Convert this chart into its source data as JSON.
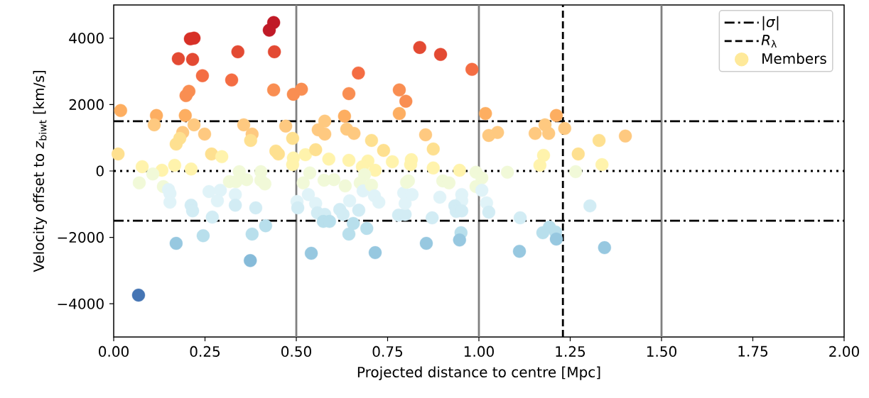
{
  "chart_data": {
    "type": "scatter",
    "xlabel": "Projected distance to centre [Mpc]",
    "ylabel": "Velocity offset to *z*$_{biwt}$ [km/s]",
    "xlim": [
      0,
      2
    ],
    "ylim": [
      -5000,
      5000
    ],
    "xticks": [
      {
        "value": 0,
        "label": "0.00"
      },
      {
        "value": 0.25,
        "label": "0.25"
      },
      {
        "value": 0.5,
        "label": "0.50"
      },
      {
        "value": 0.75,
        "label": "0.75"
      },
      {
        "value": 1,
        "label": "1.00"
      },
      {
        "value": 1.25,
        "label": "1.25"
      },
      {
        "value": 1.5,
        "label": "1.50"
      },
      {
        "value": 1.75,
        "label": "1.75"
      },
      {
        "value": 2,
        "label": "2.00"
      }
    ],
    "yticks": [
      {
        "value": -4000,
        "label": "−4000"
      },
      {
        "value": -2000,
        "label": "−2000"
      },
      0,
      2000,
      4000
    ],
    "legend": "top right",
    "marker": "circle",
    "ref_lines": [
      {
        "axis": "x",
        "value": 0.5,
        "color": "#808080",
        "line_style": "solid"
      },
      {
        "axis": "x",
        "value": 1.0,
        "color": "#808080",
        "line_style": "solid"
      },
      {
        "axis": "x",
        "value": 1.5,
        "color": "#808080",
        "line_style": "solid"
      },
      {
        "axis": "y",
        "value": 1500,
        "label": "|*σ*|",
        "color": "#000000",
        "line_style": "dashdot"
      },
      {
        "axis": "y",
        "value": -1500,
        "color": "#000000",
        "line_style": "dashdot"
      },
      {
        "axis": "y",
        "value": 0,
        "color": "#000000",
        "line_style": "dotted"
      },
      {
        "axis": "x",
        "value": 1.23,
        "label": "*R*$_{λ}$",
        "color": "#000000",
        "line_style": "dashed"
      }
    ],
    "series": [
      {
        "name": "Members",
        "color": "#fee99a",
        "x": [
          0.019,
          0.068,
          0.21,
          0.22,
          0.177,
          0.216,
          0.34,
          0.438,
          0.426,
          0.44,
          0.243,
          0.323,
          0.206,
          0.198,
          0.438,
          0.492,
          0.514,
          0.644,
          0.67,
          0.782,
          0.8,
          0.782,
          0.117,
          0.196,
          0.111,
          0.22,
          0.356,
          0.249,
          0.189,
          0.181,
          0.171,
          0.379,
          0.375,
          0.471,
          0.49,
          0.578,
          0.56,
          0.578,
          0.632,
          0.638,
          0.658,
          0.706,
          0.739,
          0.763,
          0.012,
          0.268,
          0.296,
          0.444,
          0.451,
          0.492,
          0.49,
          0.525,
          0.553,
          0.589,
          0.644,
          0.696,
          0.681,
          0.716,
          0.687,
          0.078,
          0.132,
          0.167,
          0.212,
          0.107,
          0.344,
          0.403,
          0.537,
          0.07,
          0.136,
          0.15,
          0.154,
          0.261,
          0.292,
          0.317,
          0.335,
          0.364,
          0.403,
          0.414,
          0.333,
          0.284,
          0.154,
          0.212,
          0.216,
          0.333,
          0.389,
          0.27,
          0.502,
          0.504,
          0.519,
          0.533,
          0.553,
          0.558,
          0.578,
          0.574,
          0.591,
          0.576,
          0.603,
          0.634,
          0.619,
          0.628,
          0.646,
          0.671,
          0.656,
          0.644,
          0.693,
          0.675,
          0.683,
          0.706,
          0.714,
          0.726,
          0.78,
          0.798,
          0.794,
          0.802,
          0.171,
          0.245,
          0.379,
          0.416,
          0.374,
          0.541,
          0.716,
          0.838,
          0.895,
          0.981,
          1.018,
          1.212,
          1.181,
          1.235,
          1.154,
          1.191,
          1.027,
          1.051,
          0.854,
          0.875,
          1.329,
          1.401,
          1.177,
          1.167,
          1.272,
          1.337,
          1.265,
          1.078,
          0.815,
          0.813,
          0.875,
          0.947,
          0.992,
          1.008,
          0.807,
          0.901,
          0.918,
          0.992,
          1.008,
          0.817,
          0.893,
          0.953,
          0.953,
          0.934,
          0.938,
          0.953,
          0.798,
          1.021,
          1.027,
          0.872,
          1.113,
          1.304,
          1.193,
          1.21,
          1.175,
          1.212,
          0.951,
          0.947,
          0.856,
          1.111,
          1.344
        ],
        "values": [
          1820,
          -3740,
          3980,
          4000,
          3380,
          3360,
          3590,
          4470,
          4240,
          3590,
          2870,
          2740,
          2400,
          2270,
          2440,
          2310,
          2460,
          2330,
          2950,
          2440,
          2100,
          1730,
          1670,
          1670,
          1390,
          1390,
          1390,
          1110,
          1160,
          980,
          810,
          1110,
          920,
          1350,
          980,
          1500,
          1240,
          1110,
          1650,
          1260,
          1130,
          920,
          620,
          280,
          510,
          510,
          430,
          600,
          510,
          390,
          190,
          490,
          640,
          360,
          320,
          300,
          130,
          20,
          -110,
          130,
          20,
          170,
          60,
          -90,
          -20,
          -20,
          -60,
          -360,
          -470,
          -560,
          -680,
          -620,
          -580,
          -320,
          -320,
          -260,
          -280,
          -390,
          -710,
          -900,
          -940,
          -1030,
          -1200,
          -1030,
          -1110,
          -1390,
          -920,
          -1110,
          -360,
          -710,
          -980,
          -1260,
          -1310,
          -1520,
          -1520,
          -280,
          -260,
          -450,
          -1160,
          -1310,
          -900,
          -1180,
          -1580,
          -1900,
          -1730,
          -360,
          -600,
          -430,
          -750,
          -940,
          -1330,
          -1310,
          -660,
          -340,
          -2180,
          -1950,
          -1900,
          -1650,
          -2700,
          -2480,
          -2460,
          3720,
          3510,
          3060,
          1730,
          1670,
          1390,
          1280,
          1130,
          1130,
          1070,
          1160,
          1090,
          660,
          920,
          1050,
          470,
          170,
          510,
          190,
          -20,
          -40,
          340,
          190,
          90,
          20,
          -40,
          -210,
          -300,
          -300,
          -360,
          -470,
          -580,
          -710,
          -790,
          -710,
          -900,
          -1050,
          -1220,
          -1200,
          -980,
          -960,
          -1240,
          -1410,
          -1410,
          -1050,
          -1690,
          -1840,
          -1860,
          -2050,
          -1860,
          -2080,
          -2180,
          -2420,
          -2310
        ],
        "colors": [
          "#fdae61",
          "#4575b4",
          "#d73027",
          "#d73027",
          "#e34a33",
          "#e34a33",
          "#e34a33",
          "#c01a27",
          "#c01a27",
          "#e34a33",
          "#f46d43",
          "#f46d43",
          "#f98e52",
          "#f98e52",
          "#f98e52",
          "#f98e52",
          "#f98e52",
          "#f98e52",
          "#f46d43",
          "#f98e52",
          "#f98e52",
          "#fdae61",
          "#fdae61",
          "#fdae61",
          "#fec980",
          "#fec980",
          "#fec980",
          "#fec980",
          "#fec980",
          "#fee090",
          "#fee090",
          "#fec980",
          "#fee090",
          "#fec980",
          "#fee090",
          "#fec980",
          "#fec980",
          "#fec980",
          "#fdae61",
          "#fec980",
          "#fec980",
          "#fee090",
          "#fee090",
          "#fff3ac",
          "#fee090",
          "#fee090",
          "#fff3ac",
          "#fee090",
          "#fee090",
          "#fff3ac",
          "#fff3ac",
          "#fff3ac",
          "#fee090",
          "#fff3ac",
          "#fff3ac",
          "#fff3ac",
          "#fff3ac",
          "#fff3ac",
          "#f1f9d8",
          "#fff3ac",
          "#fff3ac",
          "#fff3ac",
          "#fff3ac",
          "#f1f9d8",
          "#f1f9d8",
          "#f1f9d8",
          "#f1f9d8",
          "#f1f9d8",
          "#f1f9d8",
          "#e0f3f8",
          "#e0f3f8",
          "#e0f3f8",
          "#e0f3f8",
          "#f1f9d8",
          "#f1f9d8",
          "#f1f9d8",
          "#f1f9d8",
          "#f1f9d8",
          "#e0f3f8",
          "#e0f3f8",
          "#e0f3f8",
          "#d2ecf4",
          "#d2ecf4",
          "#d2ecf4",
          "#d2ecf4",
          "#d2ecf4",
          "#e0f3f8",
          "#d2ecf4",
          "#f1f9d8",
          "#e0f3f8",
          "#e0f3f8",
          "#d2ecf4",
          "#d2ecf4",
          "#b8dfec",
          "#b8dfec",
          "#f1f9d8",
          "#f1f9d8",
          "#f1f9d8",
          "#d2ecf4",
          "#d2ecf4",
          "#e0f3f8",
          "#d2ecf4",
          "#b8dfec",
          "#b8dfec",
          "#b8dfec",
          "#f1f9d8",
          "#e0f3f8",
          "#f1f9d8",
          "#e0f3f8",
          "#e0f3f8",
          "#d2ecf4",
          "#d2ecf4",
          "#e0f3f8",
          "#f1f9d8",
          "#97c8e0",
          "#b8dfec",
          "#b8dfec",
          "#b8dfec",
          "#86bbd9",
          "#97c8e0",
          "#97c8e0",
          "#e34a33",
          "#e34a33",
          "#f46d43",
          "#fdae61",
          "#fdae61",
          "#fec980",
          "#fec980",
          "#fec980",
          "#fec980",
          "#fec980",
          "#fec980",
          "#fec980",
          "#fee090",
          "#fee090",
          "#fec980",
          "#fff3ac",
          "#fff3ac",
          "#fee090",
          "#fff3ac",
          "#f1f9d8",
          "#f1f9d8",
          "#fff3ac",
          "#fff3ac",
          "#fff3ac",
          "#fff3ac",
          "#f1f9d8",
          "#f1f9d8",
          "#f1f9d8",
          "#f1f9d8",
          "#f1f9d8",
          "#f1f9d8",
          "#e0f3f8",
          "#e0f3f8",
          "#e0f3f8",
          "#e0f3f8",
          "#e0f3f8",
          "#d2ecf4",
          "#d2ecf4",
          "#d2ecf4",
          "#e0f3f8",
          "#e0f3f8",
          "#d2ecf4",
          "#d2ecf4",
          "#d2ecf4",
          "#d2ecf4",
          "#b8dfec",
          "#b8dfec",
          "#b8dfec",
          "#97c8e0",
          "#b8dfec",
          "#97c8e0",
          "#97c8e0",
          "#97c8e0",
          "#97c8e0"
        ]
      }
    ]
  }
}
